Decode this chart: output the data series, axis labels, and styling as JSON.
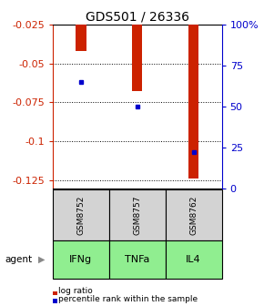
{
  "title": "GDS501 / 26336",
  "samples": [
    "GSM8752",
    "GSM8757",
    "GSM8762"
  ],
  "agents": [
    "IFNg",
    "TNFa",
    "IL4"
  ],
  "log_ratios": [
    -0.042,
    -0.068,
    -0.124
  ],
  "percentile_ranks": [
    65,
    50,
    22
  ],
  "ylim_left": [
    -0.13,
    -0.025
  ],
  "ylim_right": [
    0,
    100
  ],
  "left_ticks": [
    -0.125,
    -0.1,
    -0.075,
    -0.05,
    -0.025
  ],
  "right_ticks": [
    0,
    25,
    50,
    75,
    100
  ],
  "right_tick_labels": [
    "0",
    "25",
    "50",
    "75",
    "100%"
  ],
  "bar_color": "#cc2200",
  "dot_color": "#0000cc",
  "agent_bg_color": "#90ee90",
  "sample_bg_color": "#d3d3d3",
  "legend_bar_label": "log ratio",
  "legend_dot_label": "percentile rank within the sample",
  "agent_label": "agent",
  "left_axis_color": "#cc2200",
  "right_axis_color": "#0000cc",
  "title_fontsize": 10,
  "tick_fontsize": 8,
  "bar_width": 0.18
}
